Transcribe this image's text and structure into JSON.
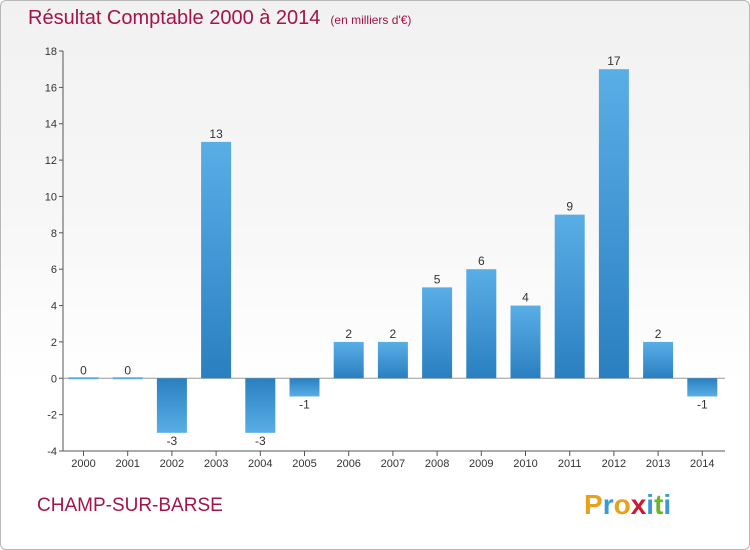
{
  "chart_data": {
    "type": "bar",
    "title": "Résultat Comptable 2000 à 2014",
    "subtitle": "(en milliers d'€)",
    "categories": [
      "2000",
      "2001",
      "2002",
      "2003",
      "2004",
      "2005",
      "2006",
      "2007",
      "2008",
      "2009",
      "2010",
      "2011",
      "2012",
      "2013",
      "2014"
    ],
    "values": [
      0,
      0,
      -3,
      13,
      -3,
      -1,
      2,
      2,
      5,
      6,
      4,
      9,
      17,
      2,
      -1
    ],
    "ylim": [
      -4,
      18
    ],
    "yticks": [
      -4,
      -2,
      0,
      2,
      4,
      6,
      8,
      10,
      12,
      14,
      16,
      18
    ],
    "xlabel": "",
    "ylabel": "",
    "grid": false,
    "legend": "none",
    "bar_color_light": "#5aaee6",
    "bar_color_dark": "#2a7fc0"
  },
  "footer": {
    "place": "CHAMP-SUR-BARSE",
    "logo_letters": [
      "P",
      "r",
      "o",
      "x",
      "i",
      "t",
      "i"
    ],
    "logo_colors": [
      "#e8a21a",
      "#3a9ad9",
      "#e8a21a",
      "#d0182e",
      "#3a9ad9",
      "#6bb52a",
      "#3a9ad9"
    ]
  },
  "colors": {
    "title": "#a4134a",
    "axis": "#555555"
  }
}
